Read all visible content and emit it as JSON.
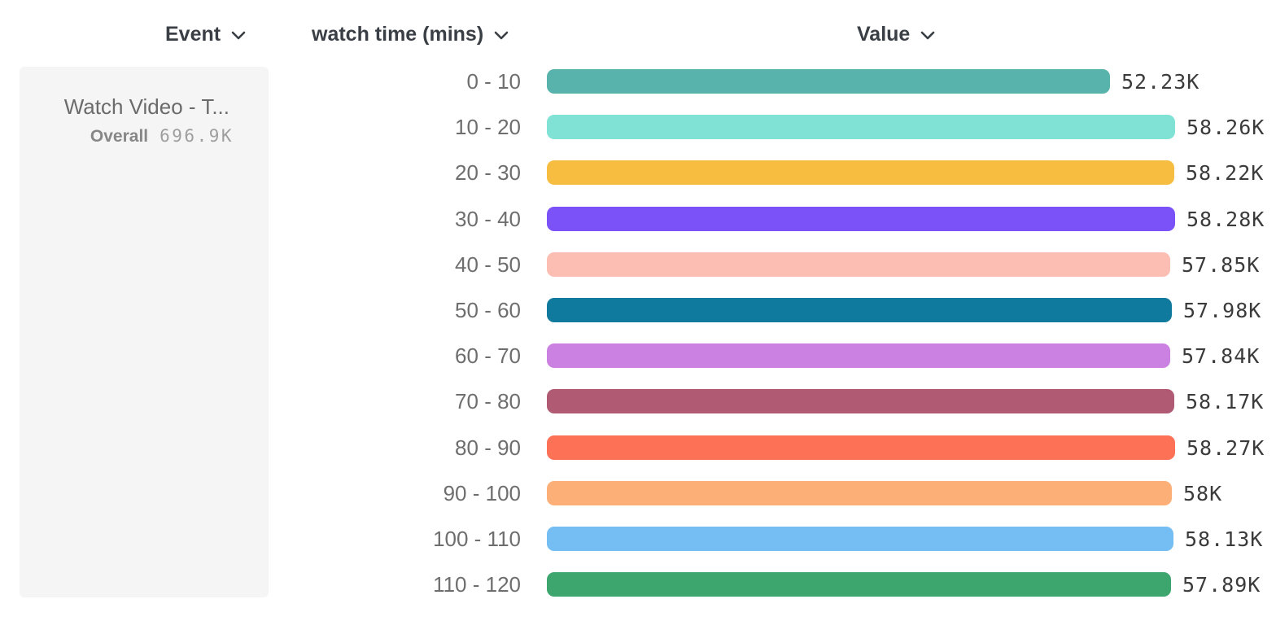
{
  "columns": [
    {
      "label": "Event"
    },
    {
      "label": "watch time (mins)"
    },
    {
      "label": "Value"
    }
  ],
  "event_card": {
    "title": "Watch Video - T...",
    "overall_label": "Overall",
    "overall_value": "696.9K"
  },
  "chart_data": {
    "type": "bar",
    "orientation": "horizontal",
    "category_axis_label": "watch time (mins)",
    "value_axis_label": "Value",
    "categories": [
      "0 - 10",
      "10 - 20",
      "20 - 30",
      "30 - 40",
      "40 - 50",
      "50 - 60",
      "60 - 70",
      "70 - 80",
      "80 - 90",
      "90 - 100",
      "100 - 110",
      "110 - 120"
    ],
    "values": [
      52.23,
      58.26,
      58.22,
      58.28,
      57.85,
      57.98,
      57.84,
      58.17,
      58.27,
      58.0,
      58.13,
      57.89
    ],
    "value_unit": "K",
    "value_labels": [
      "52.23K",
      "58.26K",
      "58.22K",
      "58.28K",
      "57.85K",
      "57.98K",
      "57.84K",
      "58.17K",
      "58.27K",
      "58K",
      "58.13K",
      "57.89K"
    ],
    "colors": [
      "#58b3ac",
      "#80e2d5",
      "#f7bd40",
      "#7a52f7",
      "#fcbdb3",
      "#107a9e",
      "#cb81e2",
      "#b05b73",
      "#fd7257",
      "#fcb078",
      "#74bef4",
      "#3da56e"
    ],
    "xlim": [
      0,
      58.28
    ],
    "grid": false,
    "legend": false,
    "text_color": "#3b3b3b",
    "label_color": "#6e6e6e"
  }
}
